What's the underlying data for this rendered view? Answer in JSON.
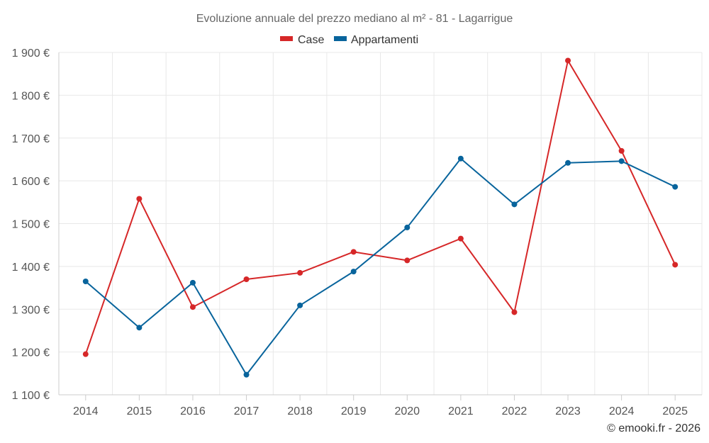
{
  "chart_data": {
    "type": "line",
    "title": "Evoluzione annuale del prezzo mediano al m² - 81 - Lagarrigue",
    "categories": [
      "2014",
      "2015",
      "2016",
      "2017",
      "2018",
      "2019",
      "2020",
      "2021",
      "2022",
      "2023",
      "2024",
      "2025"
    ],
    "series": [
      {
        "name": "Case",
        "color": "#d62728",
        "values": [
          1195,
          1558,
          1305,
          1370,
          1385,
          1434,
          1414,
          1465,
          1293,
          1881,
          1670,
          1404
        ]
      },
      {
        "name": "Appartamenti",
        "color": "#08649c",
        "values": [
          1365,
          1257,
          1362,
          1147,
          1309,
          1388,
          1491,
          1652,
          1545,
          1642,
          1646,
          1586
        ]
      }
    ],
    "ylim": [
      1100,
      1900
    ],
    "y_ticks": [
      1100,
      1200,
      1300,
      1400,
      1500,
      1600,
      1700,
      1800,
      1900
    ],
    "y_tick_labels": [
      "1 100 €",
      "1 200 €",
      "1 300 €",
      "1 400 €",
      "1 500 €",
      "1 600 €",
      "1 700 €",
      "1 800 €",
      "1 900 €"
    ],
    "xlabel": "",
    "ylabel": "",
    "grid": true,
    "legend_position": "top-center"
  },
  "footer": {
    "credit": "© emooki.fr - 2026"
  }
}
